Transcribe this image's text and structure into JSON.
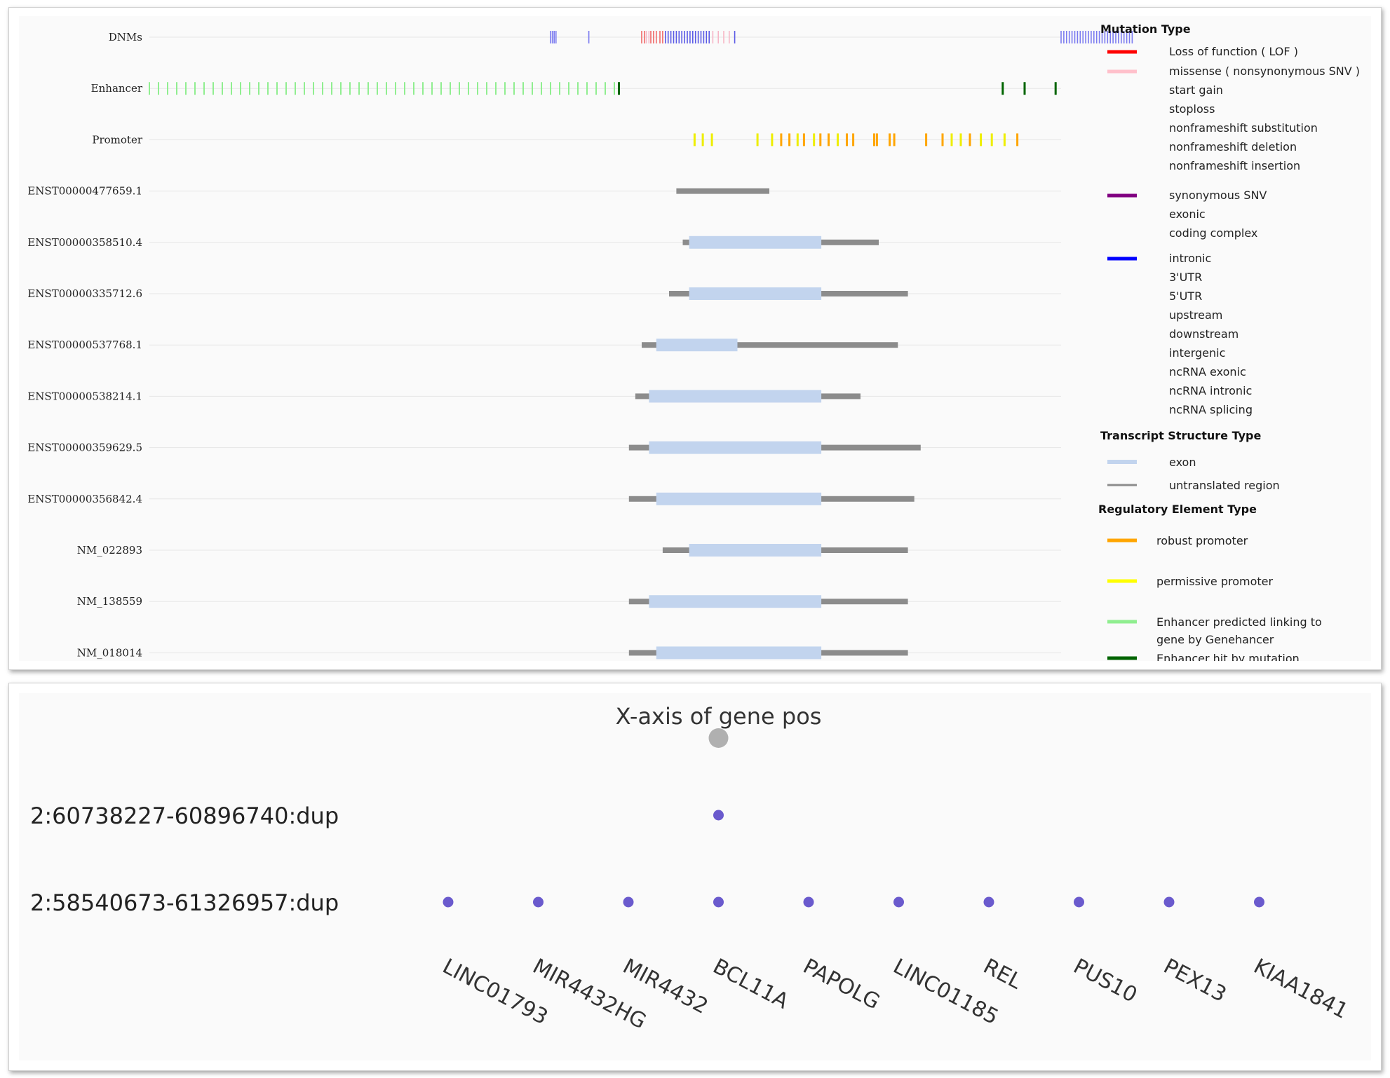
{
  "genome_browser": {
    "tracks": [
      {
        "label": "DNMs"
      },
      {
        "label": "Enhancer"
      },
      {
        "label": "Promoter"
      },
      {
        "label": "ENST00000477659.1"
      },
      {
        "label": "ENST00000358510.4"
      },
      {
        "label": "ENST00000335712.6"
      },
      {
        "label": "ENST00000537768.1"
      },
      {
        "label": "ENST00000538214.1"
      },
      {
        "label": "ENST00000359629.5"
      },
      {
        "label": "ENST00000356842.4"
      },
      {
        "label": "NM_022893"
      },
      {
        "label": "NM_138559"
      },
      {
        "label": "NM_018014"
      }
    ],
    "legend": {
      "mutation_type": {
        "heading": "Mutation Type",
        "groups": [
          {
            "color": "#ff0000",
            "items": [
              "Loss of function ( LOF )"
            ]
          },
          {
            "color": "#ffc0cb",
            "items": [
              "missense ( nonsynonymous SNV )",
              "start gain",
              "stoploss",
              "nonframeshift substitution",
              "nonframeshift deletion",
              "nonframeshift insertion"
            ]
          },
          {
            "color": "#800080",
            "items": [
              "synonymous SNV",
              "exonic",
              "coding complex"
            ]
          },
          {
            "color": "#0000ff",
            "items": [
              "intronic",
              "3'UTR",
              "5'UTR",
              "upstream",
              "downstream",
              "intergenic",
              "ncRNA exonic",
              "ncRNA intronic",
              "ncRNA splicing"
            ]
          }
        ]
      },
      "transcript_structure": {
        "heading": "Transcript Structure Type",
        "items": [
          {
            "label": "exon",
            "color": "#c2d4ee"
          },
          {
            "label": "untranslated region",
            "color": "#8c8c8c"
          }
        ]
      },
      "regulatory_element": {
        "heading": "Regulatory Element Type",
        "items": [
          {
            "label": "robust promoter",
            "color": "#ffa500"
          },
          {
            "label": "permissive promoter",
            "color": "#ffff00"
          },
          {
            "label": "Enhancer predicted linking to gene by Genehancer",
            "color": "#90ee90"
          },
          {
            "label": "Enhancer hit by mutation",
            "color": "#006400"
          }
        ]
      }
    }
  },
  "chart_data": [
    {
      "type": "genome-track",
      "x_domain": [
        0,
        1000
      ],
      "dnms": {
        "blue": [
          440,
          442,
          444,
          446,
          482,
          1000,
          1003,
          1006,
          1009,
          1012,
          1015,
          1018,
          1021,
          1024,
          1027,
          1030,
          1033,
          1036,
          1039,
          1042,
          1045,
          1048,
          1051,
          1054,
          1057,
          1060,
          1063,
          1066,
          1069,
          1072,
          1075,
          1078
        ],
        "red": [
          540,
          543,
          550,
          553,
          556,
          560,
          563
        ],
        "pink": [
          545,
          548,
          618,
          624,
          630,
          636
        ],
        "purple_blue": [
          566,
          569,
          572,
          575,
          578,
          581,
          584,
          587,
          590,
          593,
          596,
          599,
          602,
          605,
          608,
          611,
          614,
          642
        ]
      },
      "enhancer": {
        "predicted": [
          0,
          10,
          20,
          30,
          40,
          50,
          60,
          70,
          80,
          90,
          100,
          110,
          120,
          130,
          140,
          150,
          160,
          170,
          180,
          190,
          200,
          210,
          220,
          230,
          240,
          250,
          260,
          270,
          280,
          290,
          300,
          310,
          320,
          330,
          340,
          350,
          360,
          370,
          380,
          390,
          400,
          410,
          420,
          430,
          440,
          450,
          460,
          470,
          480,
          490,
          500,
          510
        ],
        "hit": [
          515,
          936,
          960,
          994
        ]
      },
      "promoter": {
        "permissive": [
          598,
          607,
          617,
          667,
          683,
          711,
          729,
          755,
          880,
          890,
          912,
          924,
          938
        ],
        "robust": [
          693,
          702,
          718,
          736,
          745,
          765,
          772,
          795,
          798,
          812,
          817,
          852,
          870,
          900,
          952
        ]
      },
      "transcripts": [
        {
          "name": "ENST00000477659.1",
          "utr": [
            578,
            680
          ],
          "exon": null
        },
        {
          "name": "ENST00000358510.4",
          "utr": [
            585,
            800
          ],
          "exon": [
            592,
            737
          ]
        },
        {
          "name": "ENST00000335712.6",
          "utr": [
            570,
            832
          ],
          "exon": [
            592,
            737
          ]
        },
        {
          "name": "ENST00000537768.1",
          "utr": [
            540,
            821
          ],
          "exon": [
            556,
            645
          ]
        },
        {
          "name": "ENST00000538214.1",
          "utr": [
            533,
            780
          ],
          "exon": [
            548,
            737
          ]
        },
        {
          "name": "ENST00000359629.5",
          "utr": [
            526,
            846
          ],
          "exon": [
            548,
            737
          ]
        },
        {
          "name": "ENST00000356842.4",
          "utr": [
            526,
            839
          ],
          "exon": [
            556,
            737
          ]
        },
        {
          "name": "NM_022893",
          "utr": [
            563,
            832
          ],
          "exon": [
            592,
            737
          ]
        },
        {
          "name": "NM_138559",
          "utr": [
            526,
            832
          ],
          "exon": [
            548,
            737
          ]
        },
        {
          "name": "NM_018014",
          "utr": [
            526,
            832
          ],
          "exon": [
            556,
            737
          ]
        }
      ]
    },
    {
      "type": "scatter",
      "title": "X-axis of gene pos",
      "categories": [
        "LINC01793",
        "MIR4432HG",
        "MIR4432",
        "BCL11A",
        "PAPOLG",
        "LINC01185",
        "REL",
        "PUS10",
        "PEX13",
        "KIAA1841"
      ],
      "rows": [
        {
          "label": "2:60738227-60896740:dup",
          "genes": [
            "BCL11A"
          ]
        },
        {
          "label": "2:58540673-61326957:dup",
          "genes": [
            "LINC01793",
            "MIR4432HG",
            "MIR4432",
            "BCL11A",
            "PAPOLG",
            "LINC01185",
            "REL",
            "PUS10",
            "PEX13",
            "KIAA1841"
          ]
        }
      ],
      "marker_color": "#6a5acd",
      "header_marker_gene": "BCL11A",
      "header_marker_color": "#b0b0b0"
    }
  ]
}
